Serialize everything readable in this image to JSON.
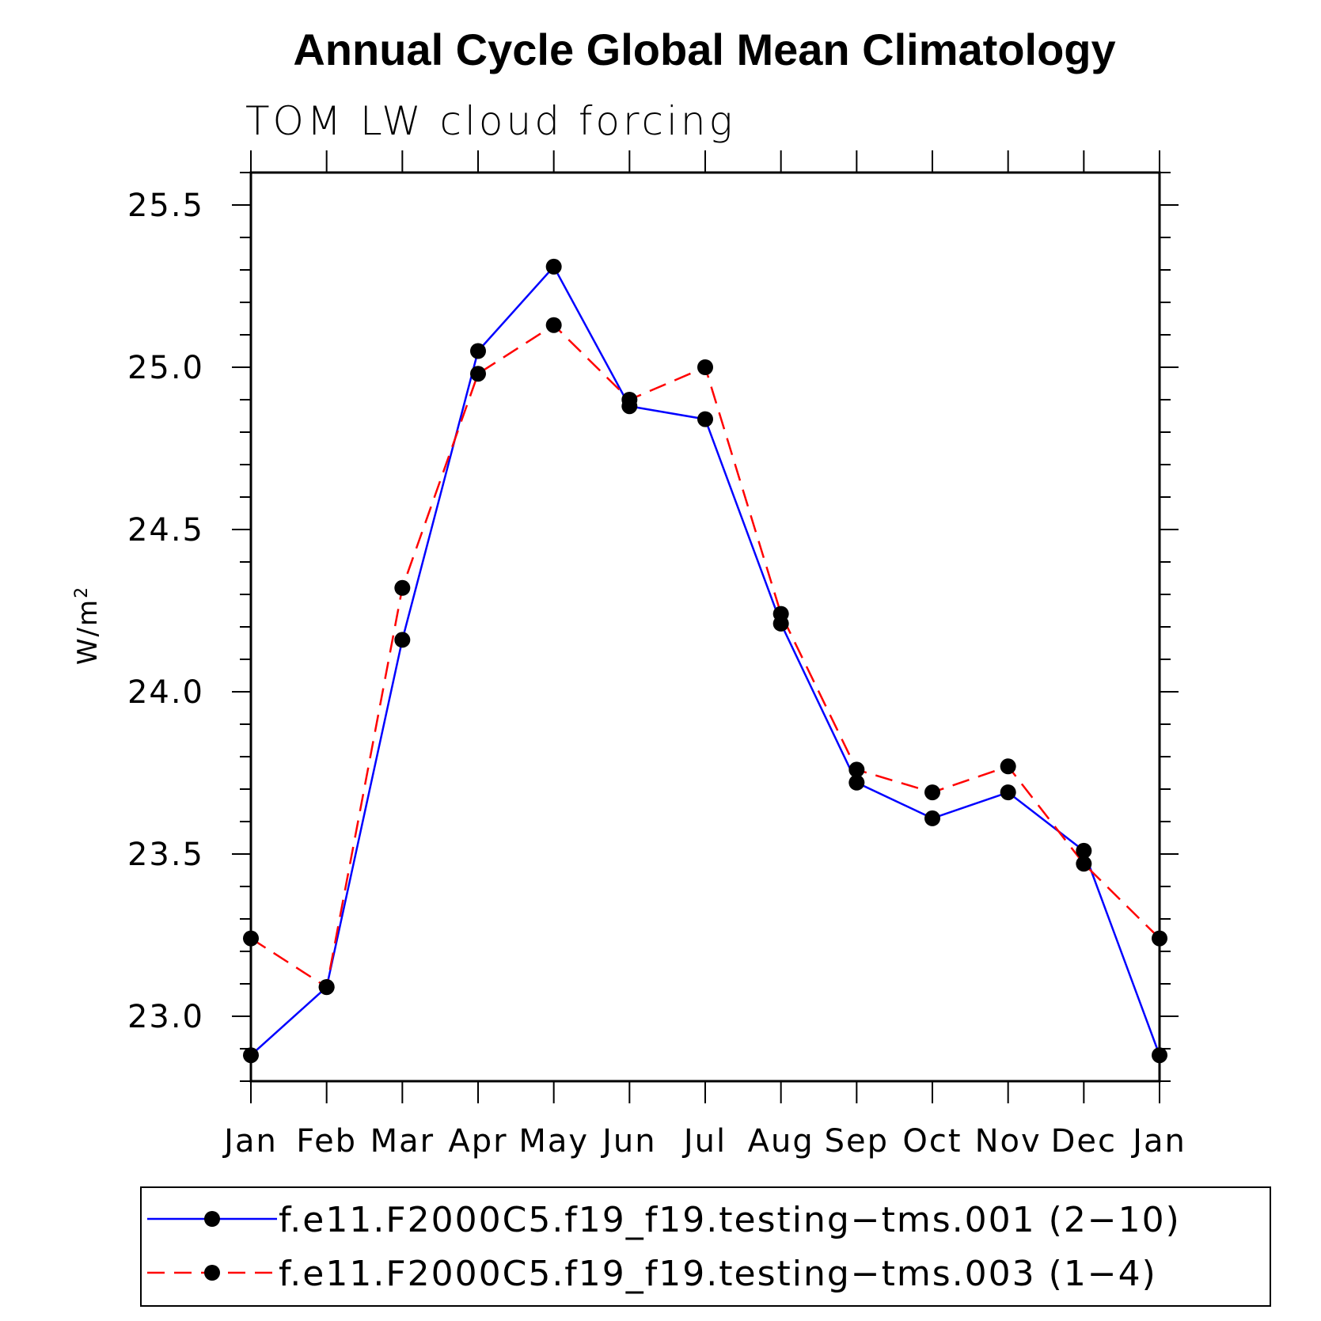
{
  "chart_data": {
    "type": "line",
    "title": "Annual Cycle Global Mean Climatology",
    "subtitle": "TOM LW cloud forcing",
    "ylabel": "W/m",
    "ylabel_superscript": "2",
    "xlabel": "",
    "ylim": [
      22.8,
      25.6
    ],
    "yticks": [
      "23.0",
      "23.5",
      "24.0",
      "24.5",
      "25.0",
      "25.5"
    ],
    "categories": [
      "Jan",
      "Feb",
      "Mar",
      "Apr",
      "May",
      "Jun",
      "Jul",
      "Aug",
      "Sep",
      "Oct",
      "Nov",
      "Dec",
      "Jan"
    ],
    "series": [
      {
        "name": "f.e11.F2000C5.f19_f19.testing−tms.001 (2−10)",
        "color": "#0000ff",
        "dash": "solid",
        "values": [
          22.88,
          23.09,
          24.16,
          25.05,
          25.31,
          24.88,
          24.84,
          24.21,
          23.72,
          23.61,
          23.69,
          23.51,
          22.88
        ]
      },
      {
        "name": "f.e11.F2000C5.f19_f19.testing−tms.003 (1−4)",
        "color": "#ff0000",
        "dash": "dashed",
        "values": [
          23.24,
          23.09,
          24.32,
          24.98,
          25.13,
          24.9,
          25.0,
          24.24,
          23.76,
          23.69,
          23.77,
          23.47,
          23.24
        ]
      }
    ],
    "legend_position": "bottom"
  }
}
